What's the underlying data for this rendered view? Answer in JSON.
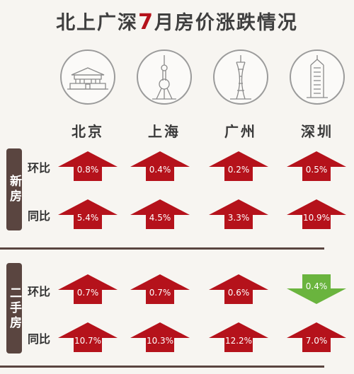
{
  "title": {
    "prefix": "北上广深",
    "highlight": "7",
    "suffix": "月房价涨跌情况"
  },
  "cities": [
    {
      "name": "北京",
      "icon": "tiananmen-icon"
    },
    {
      "name": "上海",
      "icon": "oriental-pearl-tower-icon"
    },
    {
      "name": "广州",
      "icon": "canton-tower-icon"
    },
    {
      "name": "深圳",
      "icon": "skyscraper-icon"
    }
  ],
  "groups": [
    {
      "label": "新房",
      "rows": [
        {
          "label": "环比",
          "values": [
            {
              "value": "0.8%",
              "direction": "up"
            },
            {
              "value": "0.4%",
              "direction": "up"
            },
            {
              "value": "0.2%",
              "direction": "up"
            },
            {
              "value": "0.5%",
              "direction": "up"
            }
          ]
        },
        {
          "label": "同比",
          "values": [
            {
              "value": "5.4%",
              "direction": "up"
            },
            {
              "value": "4.5%",
              "direction": "up"
            },
            {
              "value": "3.3%",
              "direction": "up"
            },
            {
              "value": "10.9%",
              "direction": "up"
            }
          ]
        }
      ]
    },
    {
      "label": "二手房",
      "rows": [
        {
          "label": "环比",
          "values": [
            {
              "value": "0.7%",
              "direction": "up"
            },
            {
              "value": "0.7%",
              "direction": "up"
            },
            {
              "value": "0.6%",
              "direction": "up"
            },
            {
              "value": "0.4%",
              "direction": "down"
            }
          ]
        },
        {
          "label": "同比",
          "values": [
            {
              "value": "10.7%",
              "direction": "up"
            },
            {
              "value": "10.3%",
              "direction": "up"
            },
            {
              "value": "12.2%",
              "direction": "up"
            },
            {
              "value": "7.0%",
              "direction": "up"
            }
          ]
        }
      ]
    }
  ],
  "colors": {
    "up": "#b5121b",
    "down": "#6ab43e",
    "accent": "#b5121b",
    "tab": "#5a4540"
  }
}
